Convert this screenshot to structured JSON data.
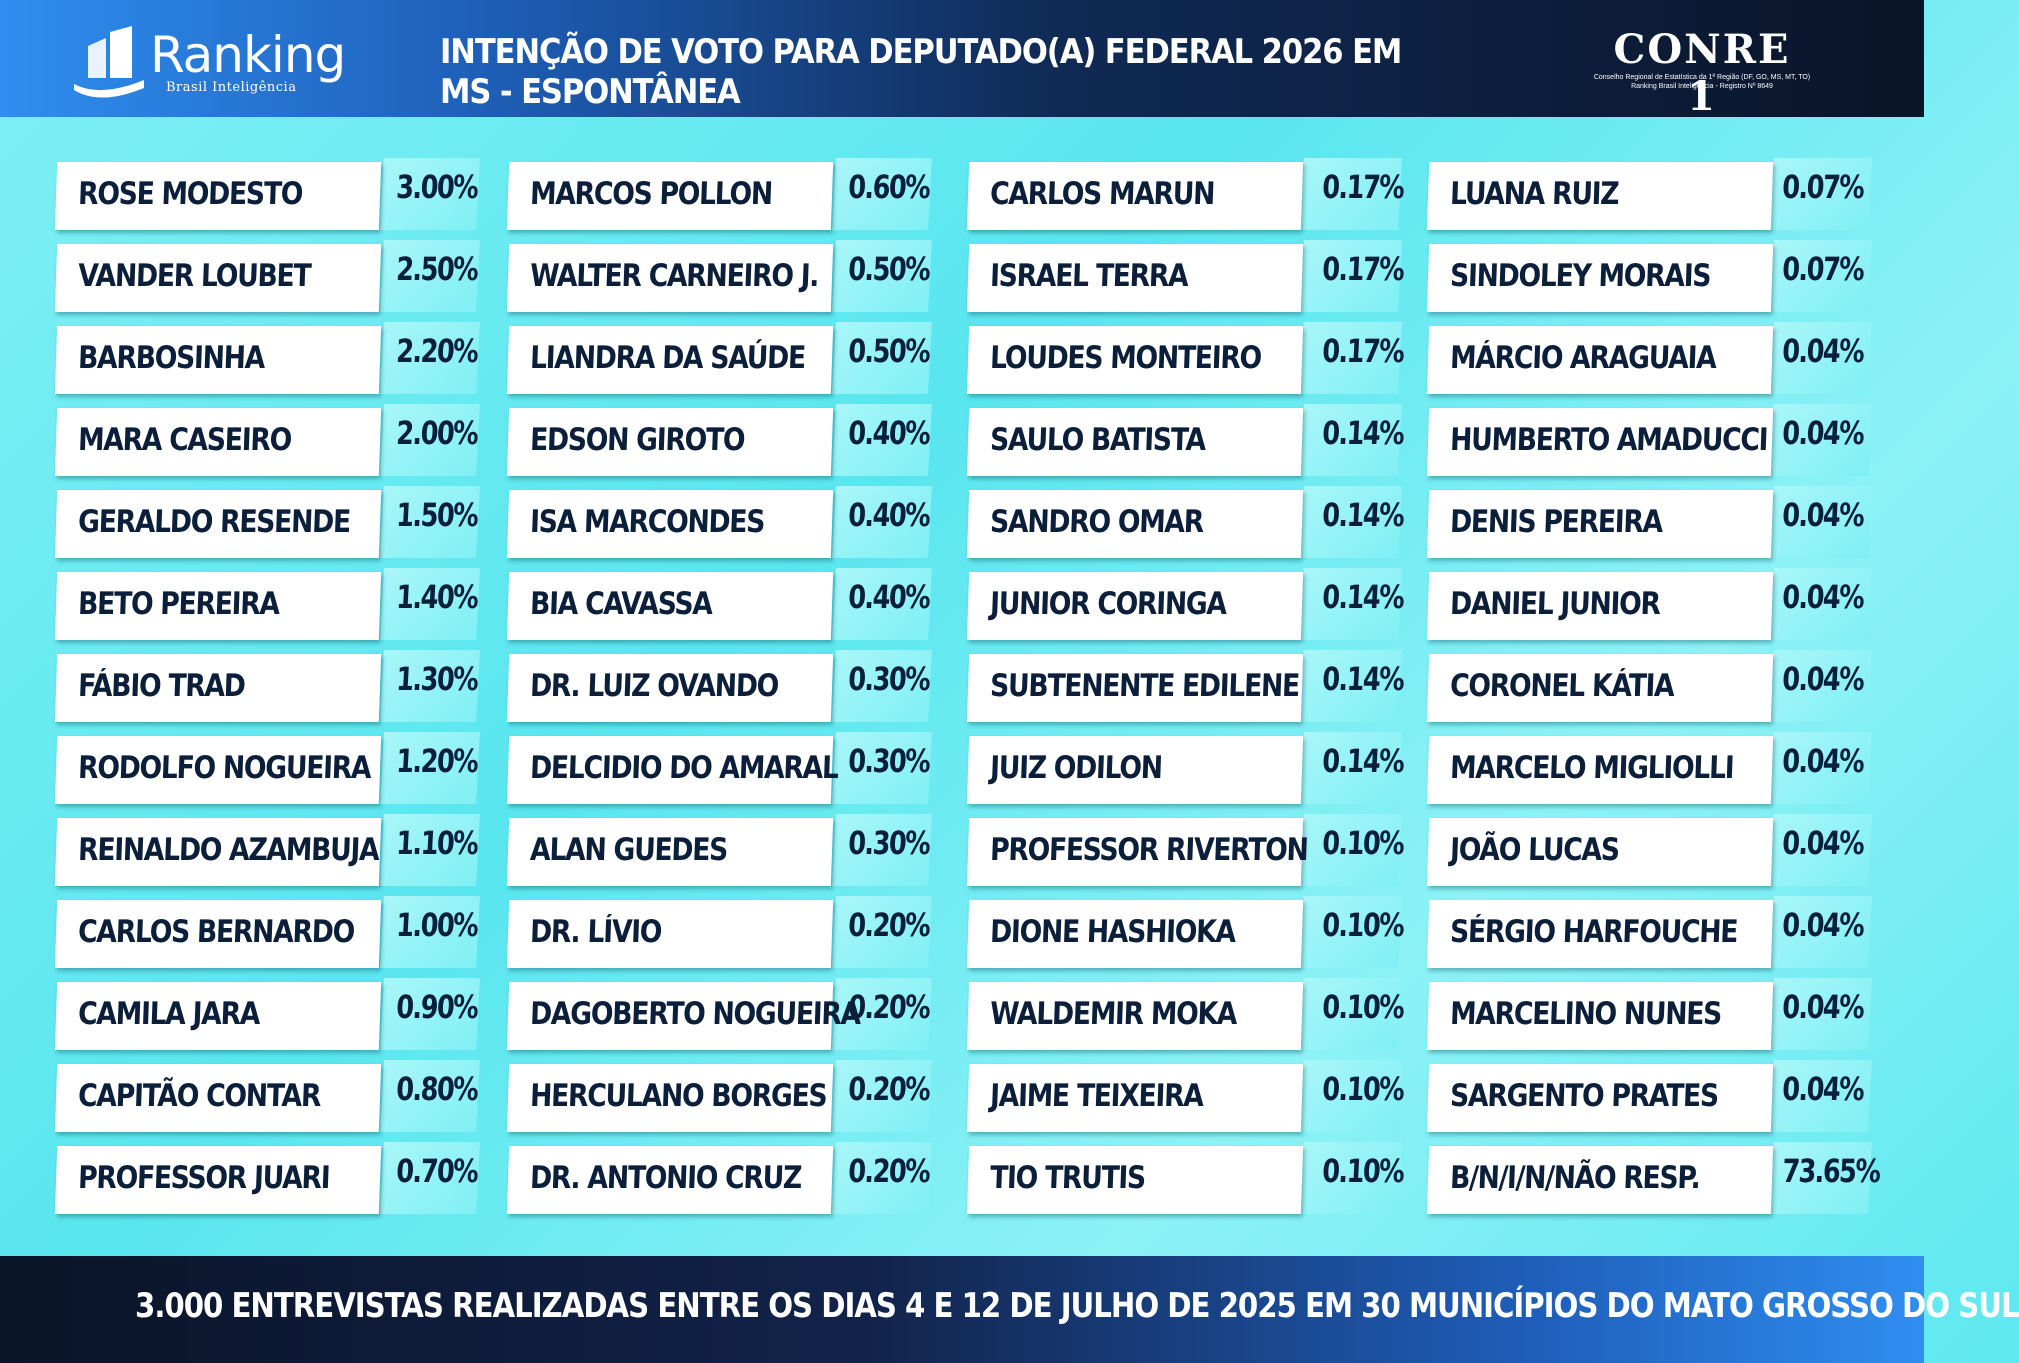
{
  "header": {
    "logo_text": "Ranking",
    "logo_sub": "Brasil Inteligência",
    "title": "INTENÇÃO DE VOTO PARA DEPUTADO(A) FEDERAL 2026 EM MS - ESPONTÂNEA",
    "conre_name": "CONRE 1",
    "conre_sub1": "Conselho Regional de Estatística da 1ª Região (DF, GO, MS, MT, TO)",
    "conre_sub2": "Ranking Brasil Inteligência - Registro Nº 8649"
  },
  "columns": [
    [
      {
        "name": "ROSE MODESTO",
        "value": "3.00%"
      },
      {
        "name": "VANDER LOUBET",
        "value": "2.50%"
      },
      {
        "name": "BARBOSINHA",
        "value": "2.20%"
      },
      {
        "name": "MARA CASEIRO",
        "value": "2.00%"
      },
      {
        "name": "GERALDO RESENDE",
        "value": "1.50%"
      },
      {
        "name": "BETO PEREIRA",
        "value": "1.40%"
      },
      {
        "name": "FÁBIO TRAD",
        "value": "1.30%"
      },
      {
        "name": "RODOLFO NOGUEIRA",
        "value": "1.20%"
      },
      {
        "name": "REINALDO AZAMBUJA",
        "value": "1.10%"
      },
      {
        "name": "CARLOS BERNARDO",
        "value": "1.00%"
      },
      {
        "name": "CAMILA JARA",
        "value": "0.90%"
      },
      {
        "name": "CAPITÃO CONTAR",
        "value": "0.80%"
      },
      {
        "name": "PROFESSOR JUARI",
        "value": "0.70%"
      }
    ],
    [
      {
        "name": "MARCOS POLLON",
        "value": "0.60%"
      },
      {
        "name": "WALTER CARNEIRO J.",
        "value": "0.50%"
      },
      {
        "name": "LIANDRA DA SAÚDE",
        "value": "0.50%"
      },
      {
        "name": "EDSON GIROTO",
        "value": "0.40%"
      },
      {
        "name": "ISA MARCONDES",
        "value": "0.40%"
      },
      {
        "name": "BIA CAVASSA",
        "value": "0.40%"
      },
      {
        "name": "DR. LUIZ OVANDO",
        "value": "0.30%"
      },
      {
        "name": "DELCIDIO DO AMARAL",
        "value": "0.30%"
      },
      {
        "name": "ALAN GUEDES",
        "value": "0.30%"
      },
      {
        "name": "DR. LÍVIO",
        "value": "0.20%"
      },
      {
        "name": "DAGOBERTO NOGUEIRA",
        "value": "0.20%"
      },
      {
        "name": "HERCULANO BORGES",
        "value": "0.20%"
      },
      {
        "name": "DR. ANTONIO CRUZ",
        "value": "0.20%"
      }
    ],
    [
      {
        "name": "CARLOS MARUN",
        "value": "0.17%"
      },
      {
        "name": "ISRAEL TERRA",
        "value": "0.17%"
      },
      {
        "name": "LOUDES MONTEIRO",
        "value": "0.17%"
      },
      {
        "name": "SAULO BATISTA",
        "value": "0.14%"
      },
      {
        "name": "SANDRO OMAR",
        "value": "0.14%"
      },
      {
        "name": "JUNIOR CORINGA",
        "value": "0.14%"
      },
      {
        "name": "SUBTENENTE EDILENE",
        "value": "0.14%"
      },
      {
        "name": "JUIZ ODILON",
        "value": "0.14%"
      },
      {
        "name": "PROFESSOR RIVERTON",
        "value": "0.10%"
      },
      {
        "name": "DIONE HASHIOKA",
        "value": "0.10%"
      },
      {
        "name": "WALDEMIR MOKA",
        "value": "0.10%"
      },
      {
        "name": "JAIME TEIXEIRA",
        "value": "0.10%"
      },
      {
        "name": "TIO TRUTIS",
        "value": "0.10%"
      }
    ],
    [
      {
        "name": "LUANA RUIZ",
        "value": "0.07%"
      },
      {
        "name": "SINDOLEY MORAIS",
        "value": "0.07%"
      },
      {
        "name": "MÁRCIO ARAGUAIA",
        "value": "0.04%"
      },
      {
        "name": "HUMBERTO AMADUCCI",
        "value": "0.04%"
      },
      {
        "name": "DENIS PEREIRA",
        "value": "0.04%"
      },
      {
        "name": "DANIEL JUNIOR",
        "value": "0.04%"
      },
      {
        "name": "CORONEL KÁTIA",
        "value": "0.04%"
      },
      {
        "name": "MARCELO MIGLIOLLI",
        "value": "0.04%"
      },
      {
        "name": "JOÃO LUCAS",
        "value": "0.04%"
      },
      {
        "name": "SÉRGIO HARFOUCHE",
        "value": "0.04%"
      },
      {
        "name": "MARCELINO NUNES",
        "value": "0.04%"
      },
      {
        "name": "SARGENTO PRATES",
        "value": "0.04%"
      },
      {
        "name": "B/N/I/N/NÃO RESP.",
        "value": "73.65%"
      }
    ]
  ],
  "footer": {
    "text": "3.000 ENTREVISTAS REALIZADAS ENTRE OS DIAS 4 E 12 DE JULHO DE 2025 EM 30 MUNICÍPIOS DO MATO GROSSO DO SUL"
  }
}
